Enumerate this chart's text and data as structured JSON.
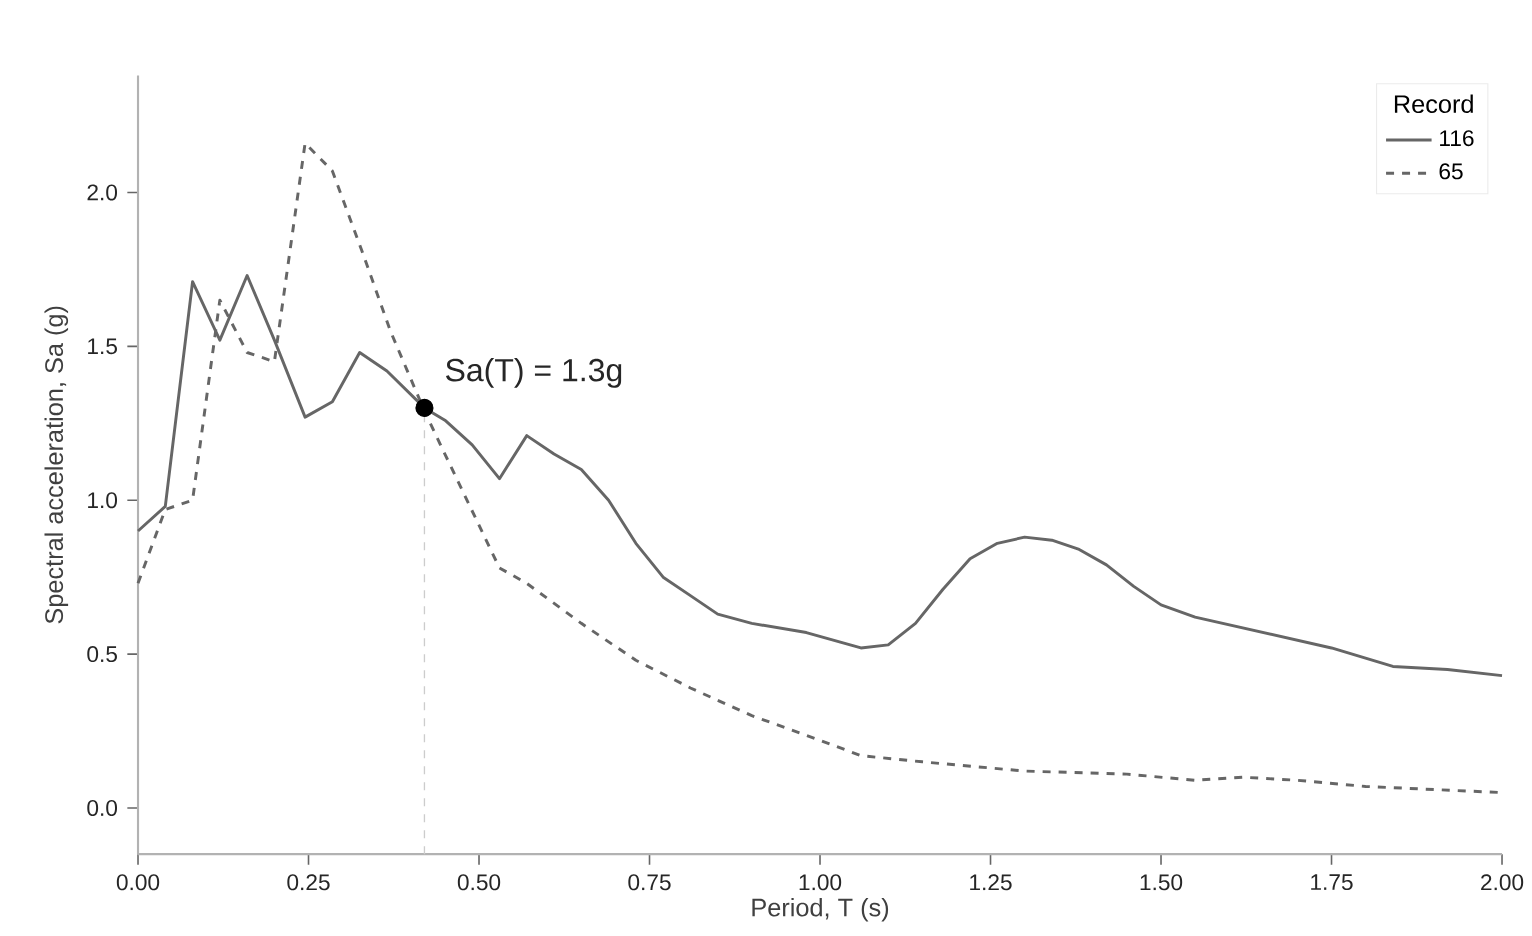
{
  "chart_data": {
    "type": "line",
    "xlabel": "Period, T (s)",
    "ylabel": "Spectral acceleration, Sa (g)",
    "legend_title": "Record",
    "legend": "top right",
    "grid": false,
    "xlim": [
      0,
      2
    ],
    "ylim": [
      -0.15,
      2.38
    ],
    "xticks": [
      {
        "value": 0,
        "label": "0.00"
      },
      {
        "value": 0.25,
        "label": "0.25"
      },
      {
        "value": 0.5,
        "label": "0.50"
      },
      {
        "value": 0.75,
        "label": "0.75"
      },
      {
        "value": 1,
        "label": "1.00"
      },
      {
        "value": 1.25,
        "label": "1.25"
      },
      {
        "value": 1.5,
        "label": "1.50"
      },
      {
        "value": 1.75,
        "label": "1.75"
      },
      {
        "value": 2,
        "label": "2.00"
      }
    ],
    "yticks": [
      {
        "value": 0,
        "label": "0.0"
      },
      {
        "value": 0.5,
        "label": "0.5"
      },
      {
        "value": 1,
        "label": "1.0"
      },
      {
        "value": 1.5,
        "label": "1.5"
      },
      {
        "value": 2,
        "label": "2.0"
      }
    ],
    "series": [
      {
        "name": "116",
        "color": "#666666",
        "line_style": "solid",
        "x": [
          0,
          0.04,
          0.08,
          0.12,
          0.16,
          0.2,
          0.245,
          0.285,
          0.325,
          0.365,
          0.42,
          0.45,
          0.49,
          0.53,
          0.57,
          0.61,
          0.65,
          0.69,
          0.73,
          0.77,
          0.81,
          0.85,
          0.9,
          0.98,
          1.06,
          1.1,
          1.14,
          1.18,
          1.22,
          1.26,
          1.3,
          1.34,
          1.38,
          1.42,
          1.46,
          1.5,
          1.55,
          1.65,
          1.75,
          1.84,
          1.92,
          2.0
        ],
        "values": [
          0.9,
          0.98,
          1.71,
          1.52,
          1.73,
          1.52,
          1.27,
          1.32,
          1.48,
          1.42,
          1.3,
          1.26,
          1.18,
          1.07,
          1.21,
          1.15,
          1.1,
          1.0,
          0.86,
          0.75,
          0.69,
          0.63,
          0.6,
          0.57,
          0.52,
          0.53,
          0.6,
          0.71,
          0.81,
          0.86,
          0.88,
          0.87,
          0.84,
          0.79,
          0.72,
          0.66,
          0.62,
          0.57,
          0.52,
          0.46,
          0.45,
          0.43
        ]
      },
      {
        "name": "65",
        "color": "#666666",
        "line_style": "dashed",
        "x": [
          0,
          0.04,
          0.08,
          0.12,
          0.16,
          0.2,
          0.245,
          0.285,
          0.33,
          0.37,
          0.42,
          0.45,
          0.53,
          0.57,
          0.65,
          0.73,
          0.81,
          0.9,
          1.0,
          1.06,
          1.15,
          1.3,
          1.45,
          1.55,
          1.62,
          1.7,
          1.8,
          1.9,
          2.0
        ],
        "values": [
          0.73,
          0.97,
          1.0,
          1.65,
          1.48,
          1.45,
          2.16,
          2.07,
          1.8,
          1.55,
          1.29,
          1.15,
          0.78,
          0.73,
          0.6,
          0.48,
          0.39,
          0.3,
          0.22,
          0.17,
          0.15,
          0.12,
          0.11,
          0.09,
          0.1,
          0.09,
          0.07,
          0.06,
          0.05
        ]
      },
      {
        "type": "scatter",
        "marker": "circle",
        "color": "#000000",
        "x": [
          0.42
        ],
        "values": [
          1.3
        ]
      }
    ],
    "ref_lines": [
      {
        "axis": "x",
        "value": 0.42,
        "color": "#cccccc",
        "line_style": "dashed"
      }
    ],
    "annotations": [
      {
        "text": "Sa(T) = 1.3g",
        "x": 0.42,
        "y": 1.3
      }
    ]
  }
}
